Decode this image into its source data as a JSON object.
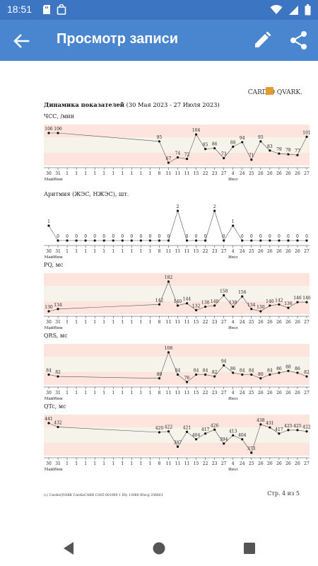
{
  "status_bar": {
    "time": "18:51",
    "icons": [
      "sd-card-icon",
      "bag-icon",
      "wifi-icon",
      "signal-icon",
      "battery-icon"
    ]
  },
  "app_bar": {
    "title": "Просмотр записи",
    "actions": [
      "back-arrow-icon",
      "edit-pencil-icon",
      "share-icon"
    ]
  },
  "document": {
    "logo": "CARDIO QVARK.",
    "heading_bold": "Динамика показателей",
    "heading_range": " (30 Мая 2023 - 27 Июля 2023)",
    "footer_left": "(c) CardioQVARK CardioCARD CA05-001069 1 IDy 13088 IDecg 256661",
    "footer_right": "Стр. 4 из 5",
    "x_days": [
      "30",
      "31",
      "1",
      "1",
      "1",
      "1",
      "1",
      "1",
      "1",
      "1",
      "1",
      "1",
      "8",
      "11",
      "11",
      "11",
      "15",
      "22",
      "23",
      "27",
      "4",
      "24",
      "25",
      "26",
      "26",
      "26",
      "26",
      "26",
      "27"
    ],
    "x_bottom": [
      "Май",
      "Июн",
      "",
      "",
      "",
      "",
      "",
      "",
      "",
      "",
      "",
      "",
      "",
      "",
      "",
      "",
      "",
      "",
      "",
      "",
      "Июл",
      "",
      "",
      "",
      "",
      "",
      "",
      "",
      ""
    ],
    "metrics": [
      {
        "label": "ЧСС, /мин",
        "values": [
          106,
          106,
          null,
          null,
          null,
          null,
          null,
          null,
          null,
          null,
          null,
          null,
          95,
          67,
          74,
          72,
          104,
          85,
          86,
          73,
          88,
          94,
          71,
          95,
          83,
          79,
          78,
          77,
          101
        ]
      },
      {
        "label": "Аритмия (ЖЭС, НЖЭС), шт.",
        "values": [
          1,
          0,
          0,
          0,
          0,
          0,
          0,
          0,
          0,
          0,
          0,
          0,
          0,
          0,
          2,
          0,
          0,
          0,
          2,
          0,
          1,
          0,
          0,
          0,
          0,
          0,
          0,
          0,
          0
        ]
      },
      {
        "label": "PQ, мс",
        "values": [
          130,
          134,
          null,
          null,
          null,
          null,
          null,
          null,
          null,
          null,
          null,
          null,
          142,
          182,
          140,
          144,
          132,
          138,
          140,
          158,
          138,
          156,
          134,
          130,
          140,
          142,
          136,
          146,
          146
        ]
      },
      {
        "label": "QRS, мс",
        "values": [
          84,
          82,
          null,
          null,
          null,
          null,
          null,
          null,
          null,
          null,
          null,
          null,
          80,
          108,
          84,
          76,
          84,
          84,
          82,
          94,
          86,
          84,
          84,
          80,
          84,
          86,
          88,
          86,
          82
        ]
      },
      {
        "label": "QTc, мс",
        "values": [
          441,
          432,
          null,
          null,
          null,
          null,
          null,
          null,
          null,
          null,
          null,
          null,
          420,
          422,
          387,
          421,
          404,
          417,
          426,
          394,
          413,
          404,
          373,
          438,
          431,
          417,
          425,
          425,
          422
        ]
      }
    ]
  },
  "nav_bar": {
    "buttons": [
      "back-triangle-icon",
      "home-circle-icon",
      "recents-square-icon"
    ]
  }
}
